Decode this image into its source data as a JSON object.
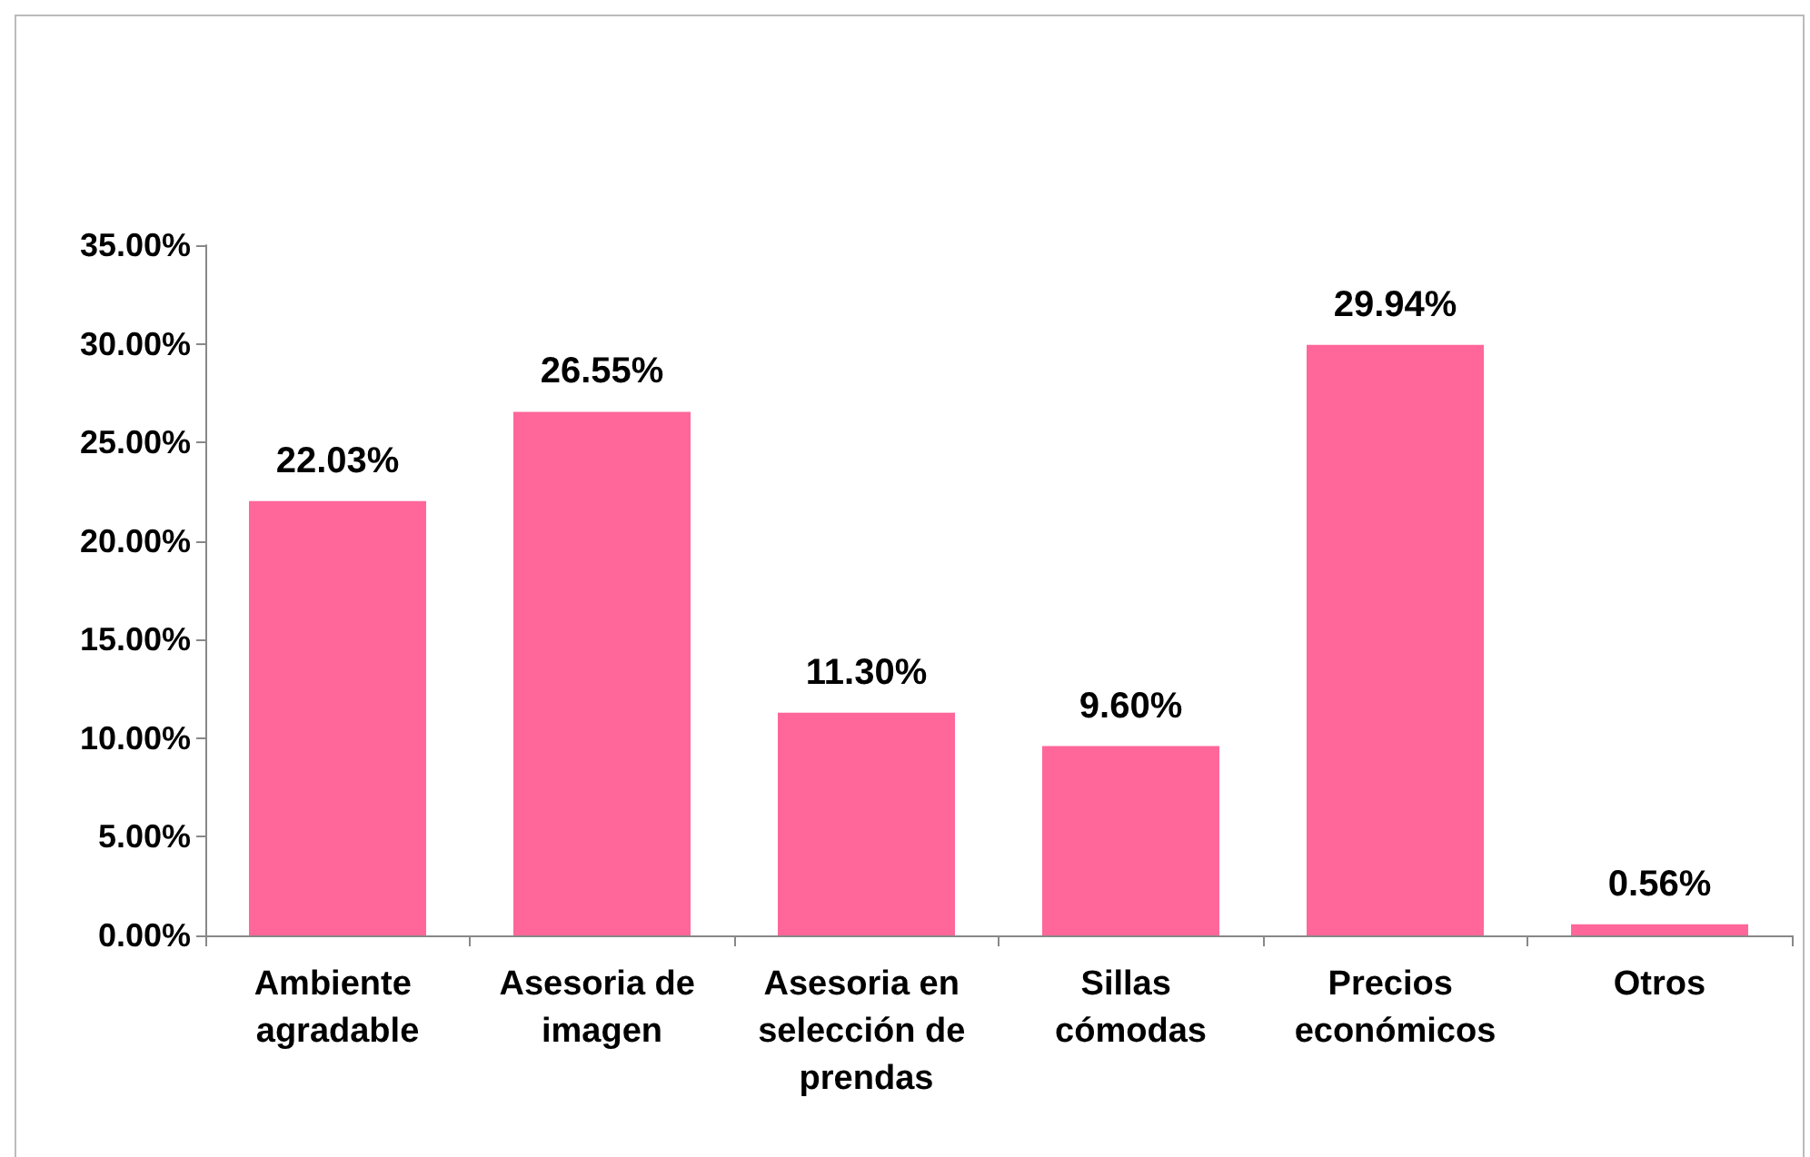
{
  "chart_data": {
    "type": "bar",
    "categories": [
      "Ambiente agradable",
      "Asesoria de imagen",
      "Asesoria en selección de prendas",
      "Sillas cómodas",
      "Precios económicos",
      "Otros"
    ],
    "values": [
      22.03,
      26.55,
      11.3,
      9.6,
      29.94,
      0.56
    ],
    "value_labels": [
      "22.03%",
      "26.55%",
      "11.30%",
      "9.60%",
      "29.94%",
      "0.56%"
    ],
    "color": "#ff6699",
    "ylim": [
      0,
      35
    ],
    "yticks": [
      {
        "value": 0,
        "label": "0.00%"
      },
      {
        "value": 5,
        "label": "5.00%"
      },
      {
        "value": 10,
        "label": "10.00%"
      },
      {
        "value": 15,
        "label": "15.00%"
      },
      {
        "value": 20,
        "label": "20.00%"
      },
      {
        "value": 25,
        "label": "25.00%"
      },
      {
        "value": 30,
        "label": "30.00%"
      },
      {
        "value": 35,
        "label": "35.00%"
      }
    ],
    "grid": false
  }
}
